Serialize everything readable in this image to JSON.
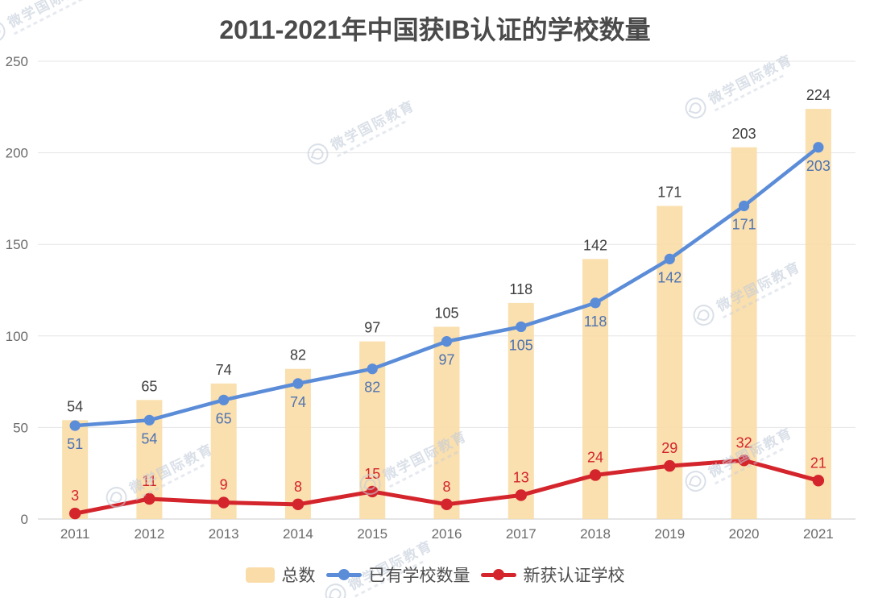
{
  "chart_data": {
    "type": "bar+line",
    "title": "2011-2021年中国获IB认证的学校数量",
    "categories": [
      "2011",
      "2012",
      "2013",
      "2014",
      "2015",
      "2016",
      "2017",
      "2018",
      "2019",
      "2020",
      "2021"
    ],
    "series": [
      {
        "key": "total",
        "name": "总数",
        "type": "bar",
        "color": "#FADCA8",
        "label_color": "#3D3D3D",
        "values": [
          54,
          65,
          74,
          82,
          97,
          105,
          118,
          142,
          171,
          203,
          224
        ]
      },
      {
        "key": "existing",
        "name": "已有学校数量",
        "type": "line",
        "color": "#5B8CD8",
        "label_color": "#4E73B0",
        "values": [
          51,
          54,
          65,
          74,
          82,
          97,
          105,
          118,
          142,
          171,
          203
        ]
      },
      {
        "key": "new",
        "name": "新获认证学校",
        "type": "line",
        "color": "#D4242C",
        "label_color": "#D4242C",
        "values": [
          3,
          11,
          9,
          8,
          15,
          8,
          13,
          24,
          29,
          32,
          21
        ]
      }
    ],
    "ylim": [
      0,
      250
    ],
    "yticks": [
      0,
      50,
      100,
      150,
      200,
      250
    ],
    "grid": true,
    "legend_position": "bottom"
  },
  "colors": {
    "grid": "#E5E5E5",
    "axis_line": "#C9C9C9",
    "tick_text": "#6B6B6B",
    "title_text": "#4A4A4A"
  },
  "watermark": {
    "text": "微学国际教育"
  }
}
